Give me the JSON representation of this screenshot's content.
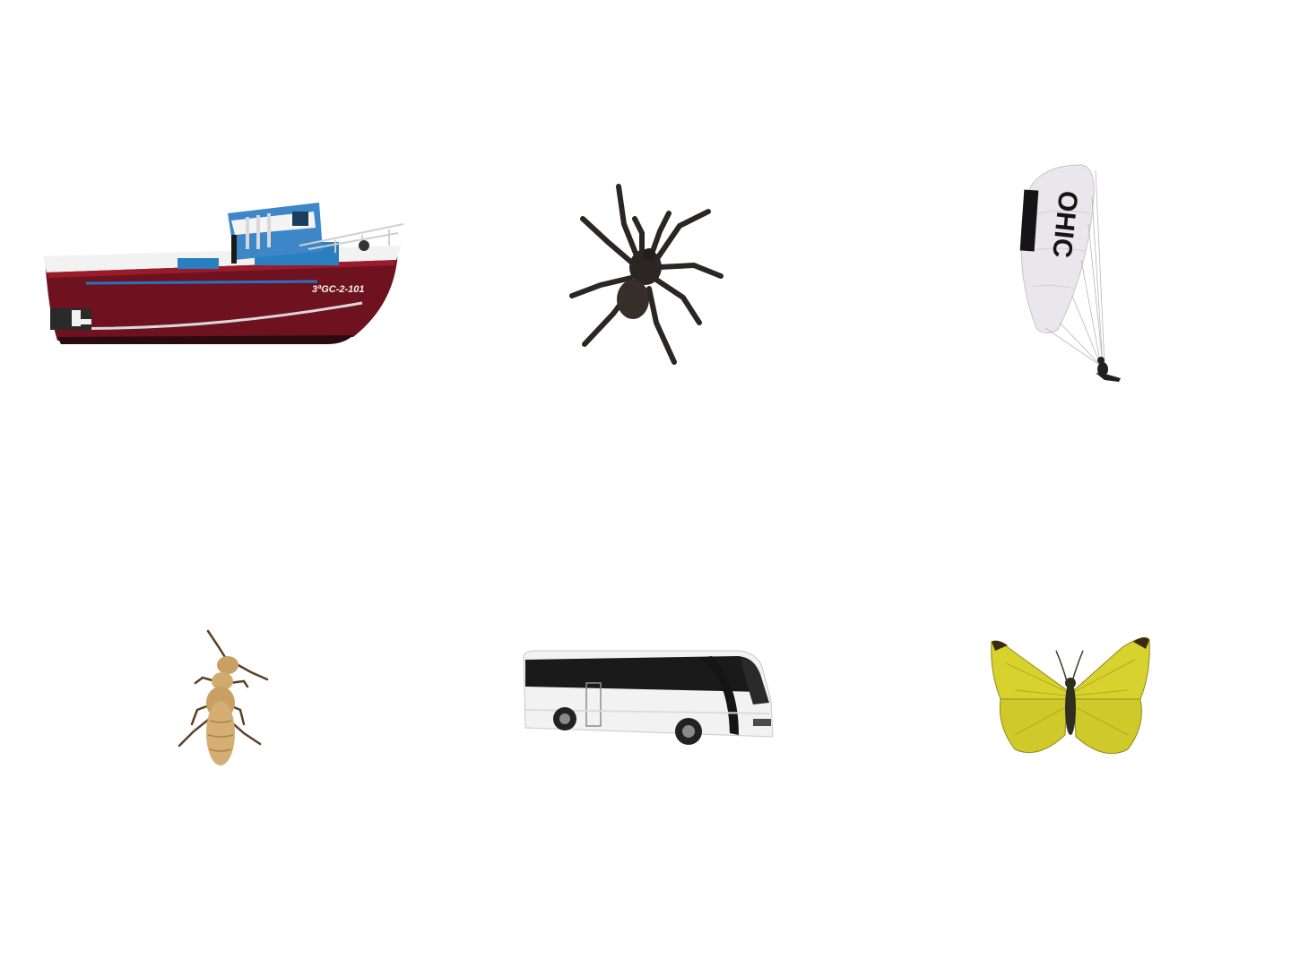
{
  "scene": {
    "background_color": "#ffffff",
    "items": [
      {
        "name": "fishing-boat",
        "icon": "boat-icon",
        "registration_text": "3ªGC-2-101"
      },
      {
        "name": "spider",
        "icon": "spider-icon"
      },
      {
        "name": "paraglider",
        "icon": "paraglider-icon",
        "wing_text": "OHIC"
      },
      {
        "name": "termite",
        "icon": "termite-icon"
      },
      {
        "name": "coach-bus",
        "icon": "bus-icon"
      },
      {
        "name": "butterfly",
        "icon": "butterfly-icon"
      }
    ],
    "colors": {
      "boat_hull": "#6e1220",
      "boat_cabin": "#2a7fc0",
      "spider_body": "#2b2624",
      "paraglider_wing": "#e9e6ec",
      "termite_body": "#c9a063",
      "bus_body": "#f2f2f2",
      "bus_windows": "#1a1a1a",
      "butterfly_wing": "#d8d22f"
    }
  }
}
